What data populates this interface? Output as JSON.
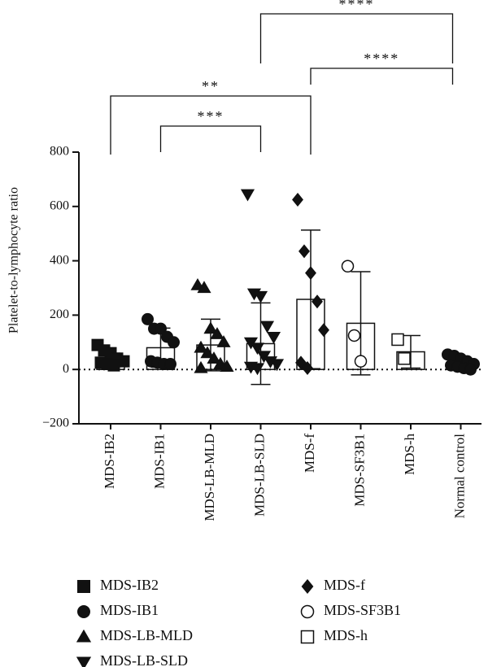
{
  "chart_data": {
    "type": "bar",
    "y_label": "Platelet-to-lymphocyte ratio",
    "ylim": [
      -200,
      800
    ],
    "yticks": [
      {
        "value": -200,
        "label": "−200"
      },
      0,
      200,
      400,
      600,
      800
    ],
    "groups": [
      {
        "name": "MDS-IB2",
        "marker": "square",
        "filled": true,
        "legend": true,
        "mean": 35,
        "sd": 25,
        "points": [
          90,
          70,
          60,
          40,
          30,
          25,
          20,
          15
        ]
      },
      {
        "name": "MDS-IB1",
        "marker": "circle",
        "filled": true,
        "legend": true,
        "mean": 80,
        "sd": 72,
        "points": [
          185,
          150,
          150,
          120,
          100,
          30,
          25,
          20,
          20
        ]
      },
      {
        "name": "MDS-LB-MLD",
        "marker": "triangle-up",
        "filled": true,
        "legend": true,
        "mean": 90,
        "sd": 95,
        "points": [
          310,
          300,
          150,
          130,
          100,
          80,
          60,
          40,
          20,
          10,
          5
        ]
      },
      {
        "name": "MDS-LB-SLD",
        "marker": "triangle-down",
        "filled": true,
        "legend": true,
        "mean": 95,
        "sd": 150,
        "points": [
          645,
          280,
          270,
          160,
          120,
          100,
          80,
          50,
          30,
          20,
          10,
          5
        ]
      },
      {
        "name": "MDS-f",
        "marker": "diamond",
        "filled": true,
        "legend": true,
        "mean": 258,
        "sd": 255,
        "points": [
          625,
          435,
          355,
          250,
          145,
          25,
          5
        ]
      },
      {
        "name": "MDS-SF3B1",
        "marker": "circle",
        "filled": false,
        "legend": true,
        "mean": 170,
        "sd": 190,
        "points": [
          380,
          125,
          30
        ]
      },
      {
        "name": "MDS-h",
        "marker": "square",
        "filled": false,
        "legend": true,
        "mean": 65,
        "sd": 60,
        "points": [
          110,
          40
        ]
      },
      {
        "name": "Normal control",
        "marker": "circle",
        "filled": true,
        "legend": false,
        "mean": 15,
        "sd": 15,
        "points": [
          55,
          50,
          40,
          30,
          20,
          15,
          10,
          5,
          0
        ]
      }
    ],
    "brackets": [
      {
        "from": 0,
        "to": 4,
        "label": "**"
      },
      {
        "from": 1,
        "to": 3,
        "label": "***"
      },
      {
        "from": 3,
        "to": 7,
        "label": "****"
      },
      {
        "from": 4,
        "to": 7,
        "label": "****"
      }
    ]
  }
}
